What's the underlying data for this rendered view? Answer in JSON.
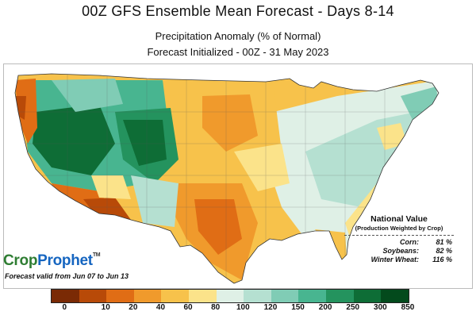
{
  "title": "00Z GFS Ensemble Mean Forecast  -  Days 8-14",
  "subtitle1": "Precipitation Anomaly (% of Normal)",
  "subtitle2": "Forecast Initialized - 00Z - 31 May 2023",
  "logo": {
    "crop": "Crop",
    "prophet": "Prophet",
    "tm": "TM"
  },
  "valid_text": "Forecast valid from Jun 07 to Jun 13",
  "national_value": {
    "title": "National Value",
    "subtitle": "(Production Weighted by Crop)",
    "rows": [
      {
        "label": "Corn:",
        "value": "81 %"
      },
      {
        "label": "Soybeans:",
        "value": "82 %"
      },
      {
        "label": "Winter Wheat:",
        "value": "116 %"
      }
    ]
  },
  "legend": {
    "colors": [
      "#7a2a05",
      "#b84a08",
      "#e06d15",
      "#f09a2c",
      "#f7c24b",
      "#fbe38a",
      "#dff0e6",
      "#b5e0d1",
      "#80ccb5",
      "#48b590",
      "#24935e",
      "#0e6d36",
      "#034a1c"
    ],
    "ticks": [
      "0",
      "10",
      "20",
      "40",
      "60",
      "80",
      "100",
      "120",
      "150",
      "200",
      "250",
      "300",
      "850"
    ]
  }
}
